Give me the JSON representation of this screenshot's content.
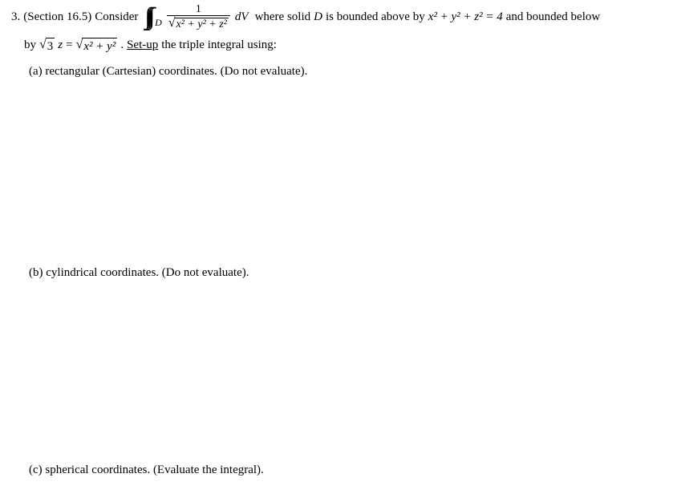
{
  "problem": {
    "num_label": "3.",
    "section_ref": "(Section 16.5)",
    "consider": "Consider",
    "integral_sym": "∫∫∫",
    "integral_sub": "D",
    "integrand_num": "1",
    "integrand_den_inner": "x² + y² + z²",
    "dV": "dV",
    "where_text": "where solid",
    "D_text": "D",
    "bounded_above": "is bounded above by",
    "sphere_eq": "x² + y² + z² = 4",
    "bounded_below": "and bounded below",
    "line2_by": "by",
    "sqrt3": "3",
    "z_var": "z",
    "equals": "=",
    "cone_inner": "x² + y²",
    "period": ".",
    "setup_text": "Set-up",
    "after_setup": "the triple integral using:",
    "parts": {
      "a": {
        "label": "(a)",
        "text": "rectangular (Cartesian) coordinates. (Do not evaluate)."
      },
      "b": {
        "label": "(b)",
        "text": "cylindrical coordinates. (Do not evaluate)."
      },
      "c": {
        "label": "(c)",
        "text": "spherical coordinates. (Evaluate the integral)."
      }
    }
  }
}
